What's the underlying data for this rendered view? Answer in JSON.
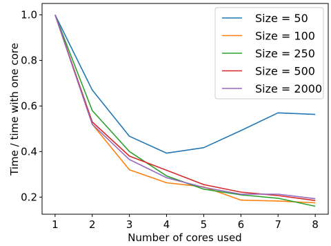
{
  "chart_data": {
    "type": "line",
    "xlabel": "Number of cores used",
    "ylabel": "Time / time with one core",
    "x": [
      1,
      2,
      3,
      4,
      5,
      6,
      7,
      8
    ],
    "xlim": [
      0.65,
      8.35
    ],
    "ylim": [
      0.125,
      1.05
    ],
    "xticks": [
      1,
      2,
      3,
      4,
      5,
      6,
      7,
      8
    ],
    "yticks": [
      0.2,
      0.4,
      0.6,
      0.8,
      1.0
    ],
    "ytick_labels": [
      "0.2",
      "0.4",
      "0.6",
      "0.8",
      "1.0"
    ],
    "grid": false,
    "legend_position": "top-right",
    "series": [
      {
        "name": "Size = 50",
        "color": "#1f77b4",
        "values": [
          1.0,
          0.67,
          0.467,
          0.393,
          0.417,
          0.492,
          0.57,
          0.563
        ]
      },
      {
        "name": "Size = 100",
        "color": "#ff7f0e",
        "values": [
          1.0,
          0.52,
          0.32,
          0.263,
          0.245,
          0.187,
          0.183,
          0.175
        ]
      },
      {
        "name": "Size = 250",
        "color": "#2ca02c",
        "values": [
          1.0,
          0.58,
          0.4,
          0.293,
          0.235,
          0.21,
          0.195,
          0.16
        ]
      },
      {
        "name": "Size = 500",
        "color": "#d62728",
        "values": [
          1.0,
          0.53,
          0.38,
          0.318,
          0.255,
          0.222,
          0.207,
          0.185
        ]
      },
      {
        "name": "Size = 2000",
        "color": "#9467bd",
        "values": [
          1.0,
          0.52,
          0.365,
          0.285,
          0.243,
          0.213,
          0.213,
          0.193
        ]
      }
    ]
  }
}
